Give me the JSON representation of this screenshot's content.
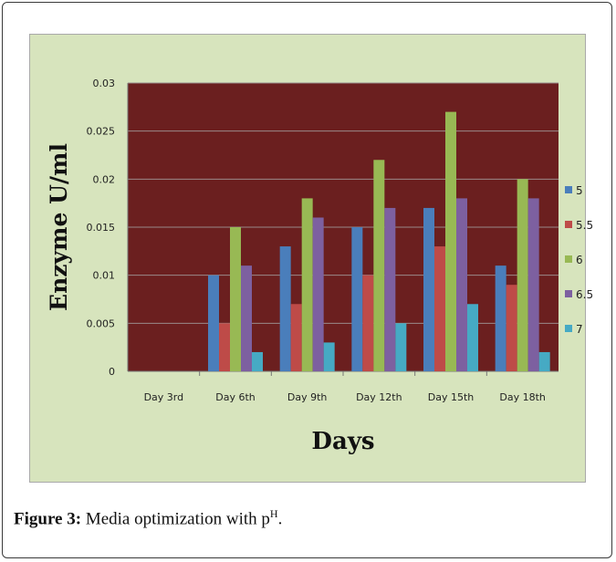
{
  "caption": {
    "label": "Figure 3:",
    "text": "Media optimization with p",
    "sup": "H",
    "end": "."
  },
  "chart_data": {
    "type": "bar",
    "title": "",
    "xlabel": "Days",
    "ylabel": "Enzyme U/ml",
    "categories": [
      "Day 3rd",
      "Day 6th",
      "Day 9th",
      "Day 12th",
      "Day 15th",
      "Day 18th"
    ],
    "ylim": [
      0,
      0.03
    ],
    "yticks": [
      "0",
      "0.005",
      "0.01",
      "0.015",
      "0.02",
      "0.025",
      "0.03"
    ],
    "grid": true,
    "legend_position": "right",
    "plot_background": "#6b1f1f",
    "chart_background": "#d7e4bd",
    "series": [
      {
        "name": "5",
        "color": "#4a7ebb",
        "values": [
          0,
          0.01,
          0.013,
          0.015,
          0.017,
          0.011
        ]
      },
      {
        "name": "5.5",
        "color": "#be4b48",
        "values": [
          0,
          0.005,
          0.007,
          0.01,
          0.013,
          0.009
        ]
      },
      {
        "name": "6",
        "color": "#98b954",
        "values": [
          0,
          0.015,
          0.018,
          0.022,
          0.027,
          0.02
        ]
      },
      {
        "name": "6.5",
        "color": "#7d60a0",
        "values": [
          0,
          0.011,
          0.016,
          0.017,
          0.018,
          0.018
        ]
      },
      {
        "name": "7",
        "color": "#46aac4",
        "values": [
          0,
          0.002,
          0.003,
          0.005,
          0.007,
          0.002
        ]
      }
    ]
  }
}
